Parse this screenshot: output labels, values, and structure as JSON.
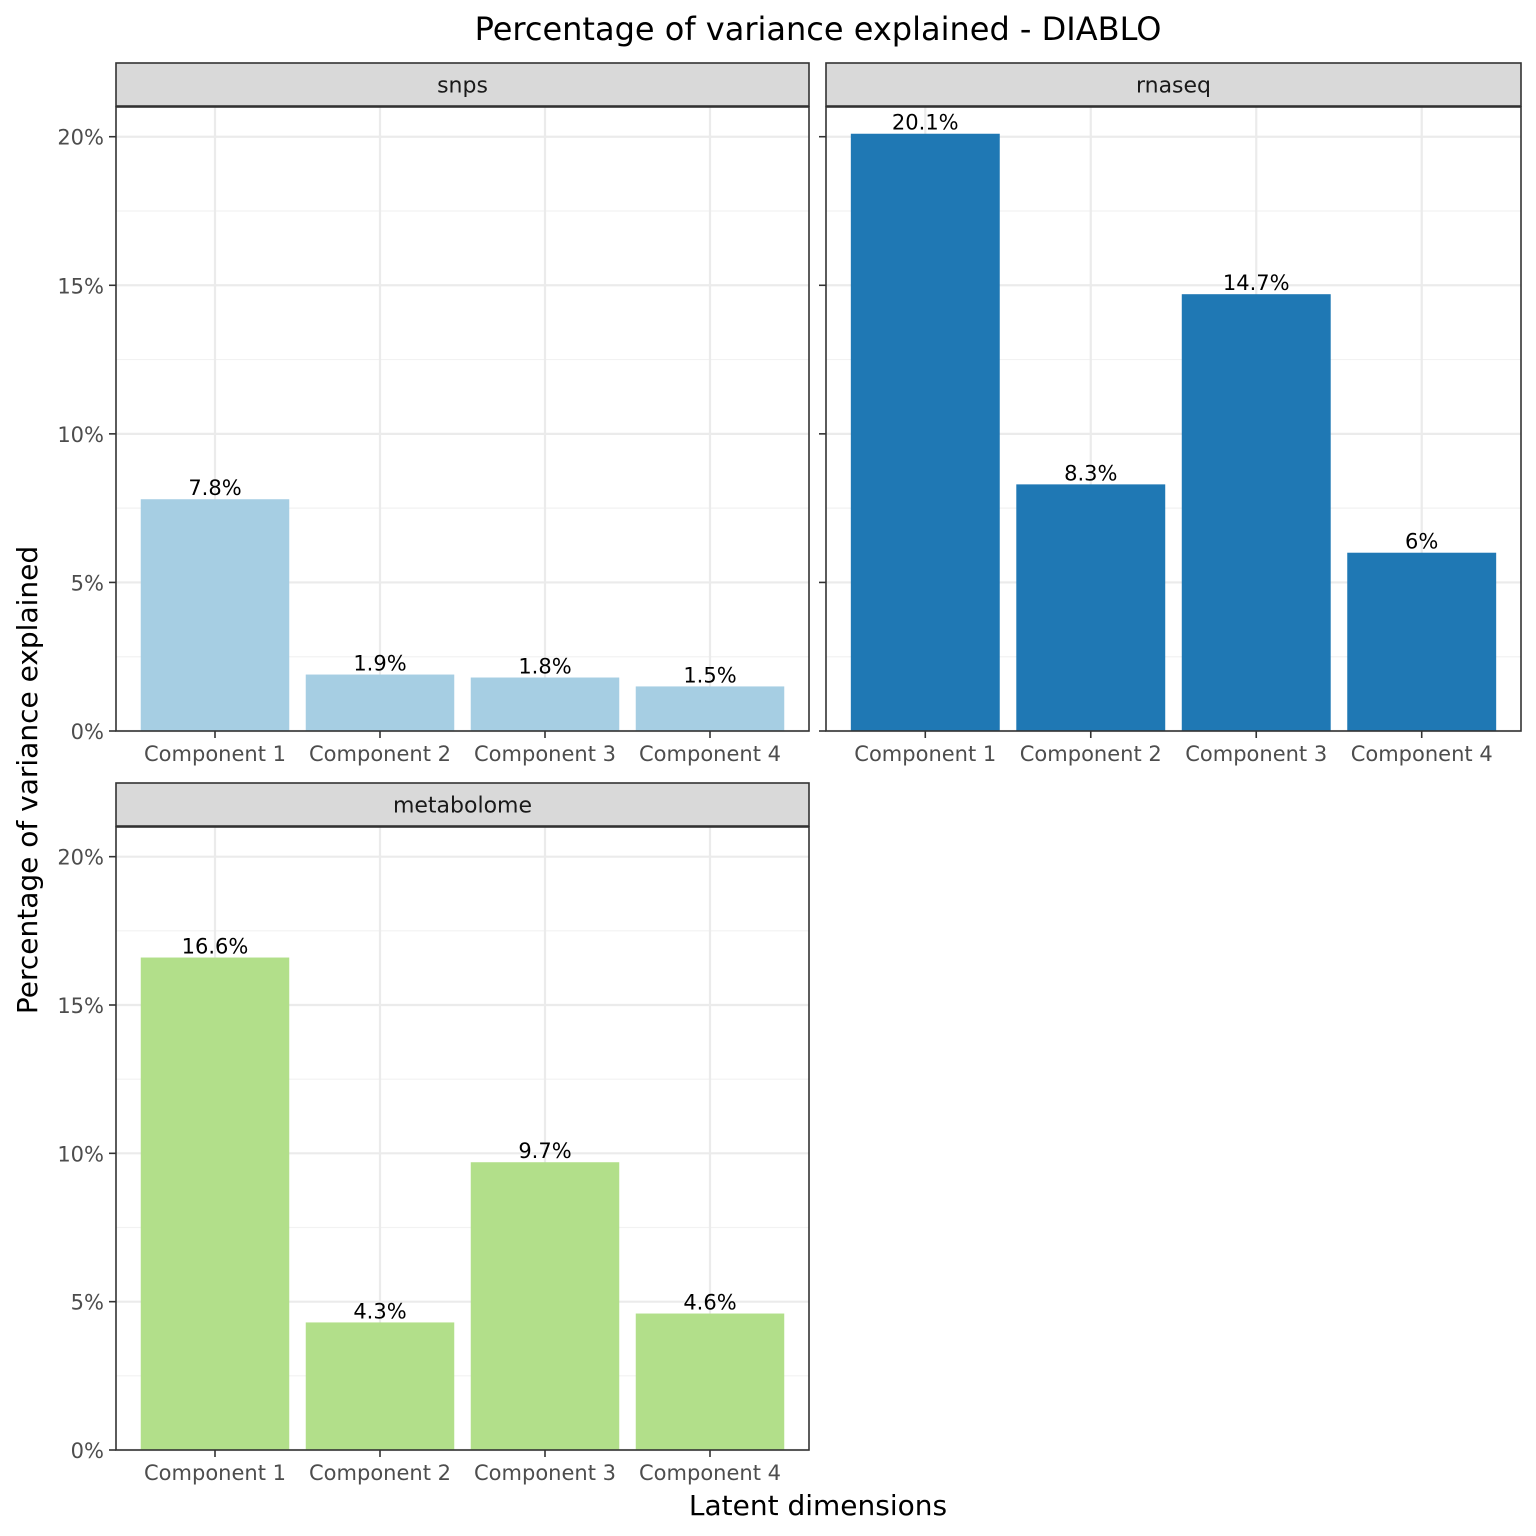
{
  "chart_data": {
    "type": "bar",
    "title": "Percentage of variance explained - DIABLO",
    "xlabel": "Latent dimensions",
    "ylabel": "Percentage of variance explained",
    "ylim": [
      0,
      21
    ],
    "y_ticks": [
      0,
      5,
      10,
      15,
      20
    ],
    "y_tick_labels": [
      "0%",
      "5%",
      "10%",
      "15%",
      "20%"
    ],
    "grid": true,
    "legend": "none",
    "categories": [
      "Component 1",
      "Component 2",
      "Component 3",
      "Component 4"
    ],
    "panels": [
      {
        "name": "snps",
        "color": "#a6cee3",
        "values": [
          7.8,
          1.9,
          1.8,
          1.5
        ],
        "labels": [
          "7.8%",
          "1.9%",
          "1.8%",
          "1.5%"
        ]
      },
      {
        "name": "rnaseq",
        "color": "#1f78b4",
        "values": [
          20.1,
          8.3,
          14.7,
          6.0
        ],
        "labels": [
          "20.1%",
          "8.3%",
          "14.7%",
          "6%"
        ]
      },
      {
        "name": "metabolome",
        "color": "#b2df8a",
        "values": [
          16.6,
          4.3,
          9.7,
          4.6
        ],
        "labels": [
          "16.6%",
          "4.3%",
          "9.7%",
          "4.6%"
        ]
      }
    ]
  }
}
